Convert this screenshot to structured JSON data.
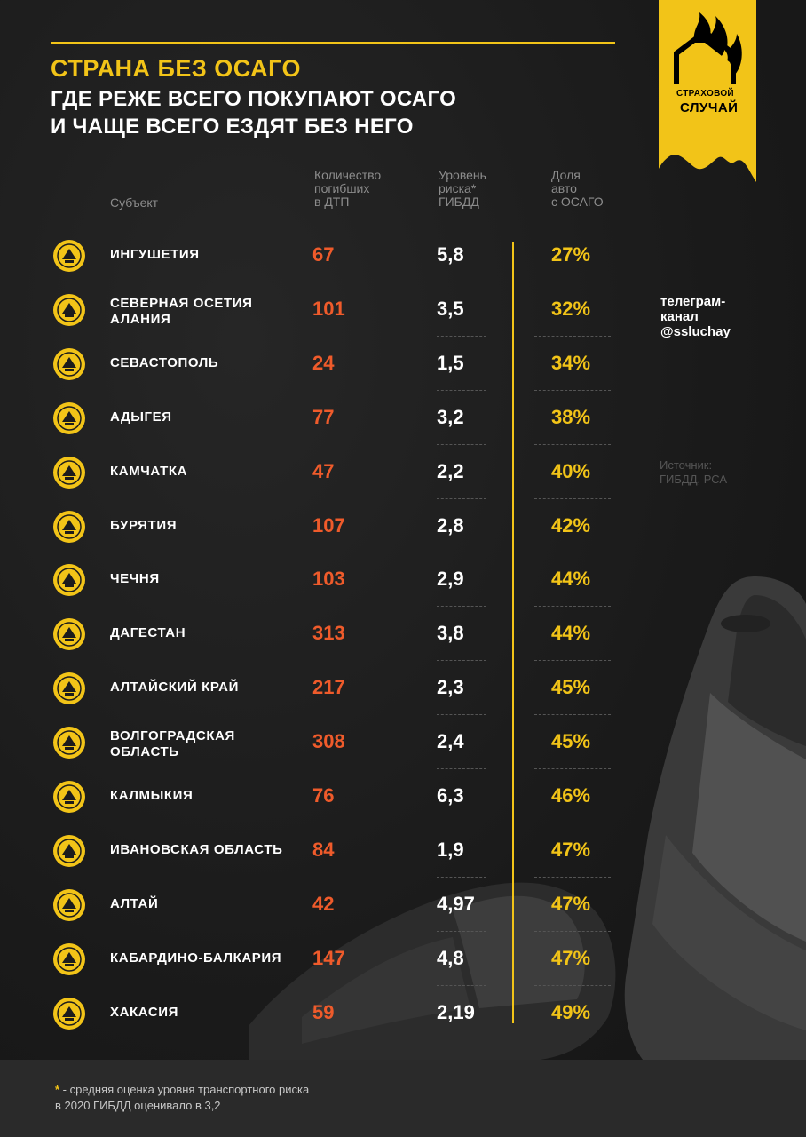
{
  "title": {
    "line1": "СТРАНА БЕЗ ОСАГО",
    "line2": "ГДЕ РЕЖЕ ВСЕГО ПОКУПАЮТ ОСАГО",
    "line3": "И ЧАЩЕ ВСЕГО ЕЗДЯТ БЕЗ НЕГО"
  },
  "logo": {
    "line1": "СТРАХОВОЙ",
    "line2": "СЛУЧАЙ"
  },
  "headers": {
    "subject": "Субъект",
    "deaths": [
      "Количество",
      "погибших",
      "в ДТП"
    ],
    "risk": [
      "Уровень",
      "риска*",
      "ГИБДД"
    ],
    "share": [
      "Доля",
      "авто",
      "с ОСАГО"
    ]
  },
  "rows": [
    {
      "name": "ИНГУШЕТИЯ",
      "deaths": "67",
      "risk": "5,8",
      "share": "27%"
    },
    {
      "name": "СЕВЕРНАЯ ОСЕТИЯ\nАЛАНИЯ",
      "deaths": "101",
      "risk": "3,5",
      "share": "32%"
    },
    {
      "name": "СЕВАСТОПОЛЬ",
      "deaths": "24",
      "risk": "1,5",
      "share": "34%"
    },
    {
      "name": "АДЫГЕЯ",
      "deaths": "77",
      "risk": "3,2",
      "share": "38%"
    },
    {
      "name": "КАМЧАТКА",
      "deaths": "47",
      "risk": "2,2",
      "share": "40%"
    },
    {
      "name": "БУРЯТИЯ",
      "deaths": "107",
      "risk": "2,8",
      "share": "42%"
    },
    {
      "name": "ЧЕЧНЯ",
      "deaths": "103",
      "risk": "2,9",
      "share": "44%"
    },
    {
      "name": "ДАГЕСТАН",
      "deaths": "313",
      "risk": "3,8",
      "share": "44%"
    },
    {
      "name": "АЛТАЙСКИЙ КРАЙ",
      "deaths": "217",
      "risk": "2,3",
      "share": "45%"
    },
    {
      "name": "ВОЛГОГРАДСКАЯ\nОБЛАСТЬ",
      "deaths": "308",
      "risk": "2,4",
      "share": "45%"
    },
    {
      "name": "КАЛМЫКИЯ",
      "deaths": "76",
      "risk": "6,3",
      "share": "46%"
    },
    {
      "name": "ИВАНОВСКАЯ ОБЛАСТЬ",
      "deaths": "84",
      "risk": "1,9",
      "share": "47%"
    },
    {
      "name": "АЛТАЙ",
      "deaths": "42",
      "risk": "4,97",
      "share": "47%"
    },
    {
      "name": "КАБАРДИНО-БАЛКАРИЯ",
      "deaths": "147",
      "risk": "4,8",
      "share": "47%"
    },
    {
      "name": "ХАКАСИЯ",
      "deaths": "59",
      "risk": "2,19",
      "share": "49%"
    }
  ],
  "telegram": [
    "телеграм-",
    "канал",
    "@ssluchay"
  ],
  "source": [
    "Источник:",
    "ГИБДД, РСА"
  ],
  "footnote": {
    "star": "*",
    "line1": " - средняя оценка уровня транспортного риска",
    "line2": "в 2020 ГИБДД оценивало в 3,2"
  },
  "colors": {
    "accent": "#f2c418",
    "deaths": "#ef5b2b",
    "background": "#1c1c1c"
  }
}
